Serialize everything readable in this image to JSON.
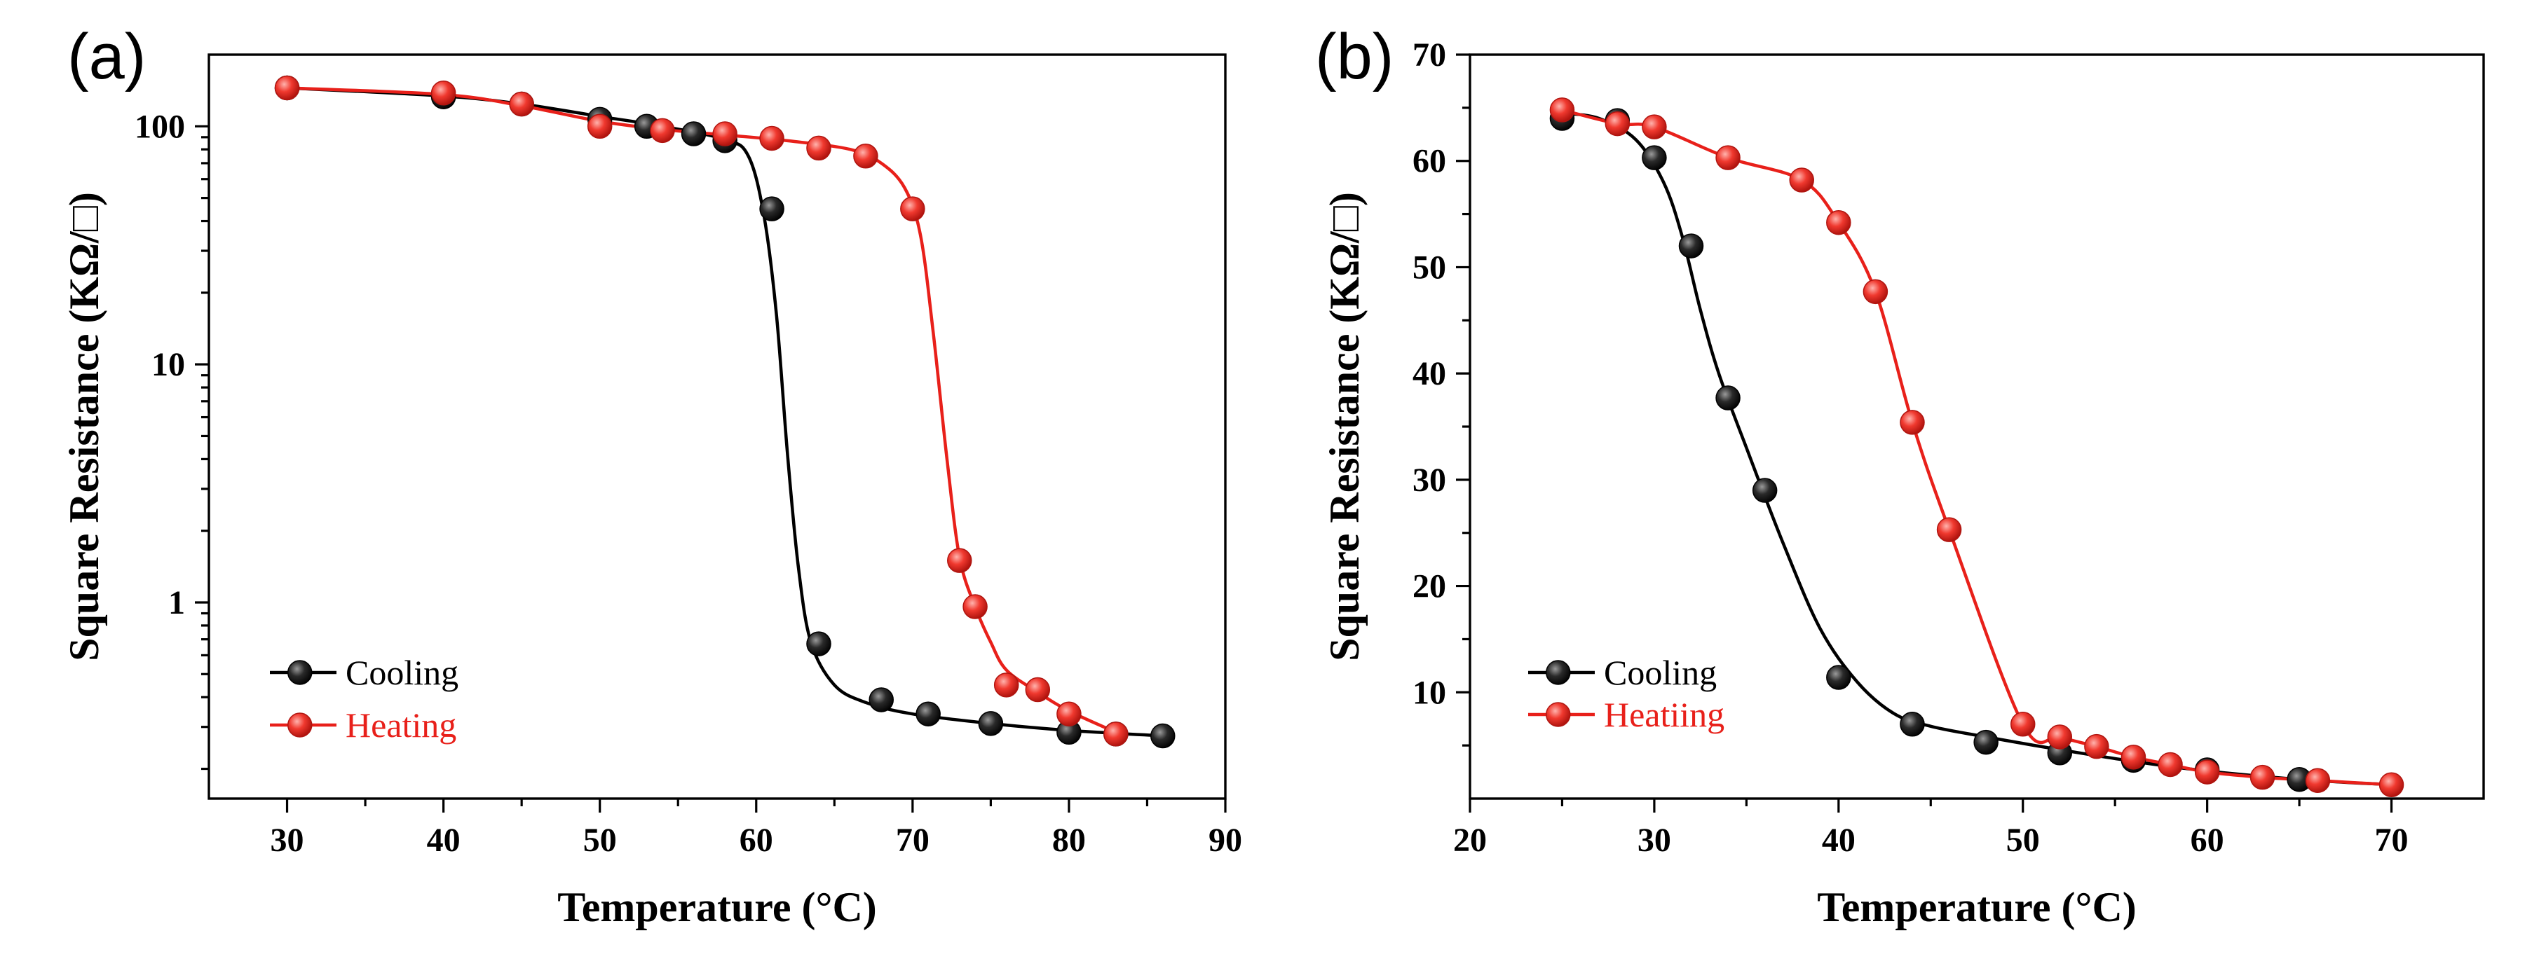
{
  "colors": {
    "cooling": "#000000",
    "heating": "#e8201a",
    "marker_cooling": "#1a1a1a",
    "marker_heating": "#e8201a"
  },
  "chart_data": [
    {
      "panel_label": "(a)",
      "type": "scatter",
      "yscale": "log",
      "xlabel": "Temperature (°C)",
      "ylabel": "Square Resistance (KΩ/□)",
      "xlim": [
        25,
        90
      ],
      "ylim": [
        0.15,
        200
      ],
      "xticks": [
        30,
        40,
        50,
        60,
        70,
        80,
        90
      ],
      "xtick_labels": [
        "30",
        "40",
        "50",
        "60",
        "70",
        "80",
        "90"
      ],
      "yticks": [
        1,
        10,
        100
      ],
      "ytick_labels": [
        "1",
        "10",
        "100"
      ],
      "legend_position": "bottom-left",
      "series": [
        {
          "name": "Cooling",
          "color": "#000000",
          "points": [
            [
              30,
              145
            ],
            [
              40,
              133
            ],
            [
              45,
              124
            ],
            [
              50,
              107
            ],
            [
              53,
              100
            ],
            [
              56,
              93
            ],
            [
              58,
              87
            ],
            [
              61,
              45
            ],
            [
              64,
              0.67
            ],
            [
              68,
              0.39
            ],
            [
              71,
              0.34
            ],
            [
              75,
              0.31
            ],
            [
              80,
              0.285
            ],
            [
              83,
              0.28
            ],
            [
              86,
              0.275
            ]
          ],
          "curve": [
            [
              30,
              145
            ],
            [
              40,
              134
            ],
            [
              45,
              124
            ],
            [
              50,
              110
            ],
            [
              54,
              100
            ],
            [
              58,
              88
            ],
            [
              59.5,
              75
            ],
            [
              60.5,
              42
            ],
            [
              61.3,
              16
            ],
            [
              62,
              4.2
            ],
            [
              62.7,
              1.4
            ],
            [
              63.5,
              0.68
            ],
            [
              65,
              0.45
            ],
            [
              67,
              0.38
            ],
            [
              70,
              0.34
            ],
            [
              75,
              0.31
            ],
            [
              80,
              0.29
            ],
            [
              86,
              0.275
            ]
          ]
        },
        {
          "name": "Heating",
          "color": "#e8201a",
          "points": [
            [
              30,
              145
            ],
            [
              40,
              138
            ],
            [
              45,
              124
            ],
            [
              50,
              100
            ],
            [
              54,
              96
            ],
            [
              58,
              93
            ],
            [
              61,
              89
            ],
            [
              64,
              81
            ],
            [
              67,
              75
            ],
            [
              70,
              45
            ],
            [
              73,
              1.5
            ],
            [
              74,
              0.96
            ],
            [
              76,
              0.45
            ],
            [
              78,
              0.43
            ],
            [
              80,
              0.34
            ],
            [
              83,
              0.28
            ]
          ],
          "curve": [
            [
              30,
              145
            ],
            [
              40,
              136
            ],
            [
              45,
              122
            ],
            [
              50,
              105
            ],
            [
              54,
              97
            ],
            [
              58,
              92
            ],
            [
              62,
              87
            ],
            [
              66,
              80
            ],
            [
              68,
              70
            ],
            [
              69.5,
              55
            ],
            [
              70.5,
              35
            ],
            [
              71.3,
              14
            ],
            [
              72.2,
              4
            ],
            [
              73,
              1.55
            ],
            [
              74,
              0.96
            ],
            [
              75,
              0.68
            ],
            [
              76,
              0.52
            ],
            [
              78,
              0.42
            ],
            [
              80,
              0.35
            ],
            [
              83,
              0.285
            ]
          ]
        }
      ]
    },
    {
      "panel_label": "(b)",
      "type": "scatter",
      "yscale": "linear",
      "xlabel": "Temperature (°C)",
      "ylabel": "Square Resistance (KΩ/□)",
      "xlim": [
        20,
        75
      ],
      "ylim": [
        0,
        70
      ],
      "xticks": [
        20,
        30,
        40,
        50,
        60,
        70
      ],
      "xtick_labels": [
        "20",
        "30",
        "40",
        "50",
        "60",
        "70"
      ],
      "yticks": [
        10,
        20,
        30,
        40,
        50,
        60,
        70
      ],
      "ytick_labels": [
        "10",
        "20",
        "30",
        "40",
        "50",
        "60",
        "70"
      ],
      "legend_position": "bottom-left",
      "series": [
        {
          "name": "Cooling",
          "color": "#000000",
          "points": [
            [
              25,
              64
            ],
            [
              28,
              63.8
            ],
            [
              30,
              60.3
            ],
            [
              32,
              52
            ],
            [
              34,
              37.7
            ],
            [
              36,
              29
            ],
            [
              40,
              11.4
            ],
            [
              44,
              7
            ],
            [
              48,
              5.3
            ],
            [
              52,
              4.3
            ],
            [
              56,
              3.6
            ],
            [
              60,
              2.7
            ],
            [
              65,
              1.8
            ]
          ],
          "curve": [
            [
              25,
              64.5
            ],
            [
              27,
              64
            ],
            [
              29,
              62
            ],
            [
              30.5,
              58
            ],
            [
              31.5,
              53
            ],
            [
              32.5,
              46
            ],
            [
              33.5,
              40
            ],
            [
              35,
              33
            ],
            [
              37,
              24
            ],
            [
              39,
              16
            ],
            [
              41,
              11
            ],
            [
              43,
              8
            ],
            [
              45,
              6.8
            ],
            [
              48,
              5.8
            ],
            [
              52,
              4.6
            ],
            [
              56,
              3.5
            ],
            [
              60,
              2.6
            ],
            [
              65,
              1.8
            ],
            [
              70,
              1.3
            ]
          ]
        },
        {
          "name": "Heatiing",
          "color": "#e8201a",
          "points": [
            [
              25,
              64.8
            ],
            [
              28,
              63.5
            ],
            [
              30,
              63.2
            ],
            [
              34,
              60.3
            ],
            [
              38,
              58.2
            ],
            [
              40,
              54.2
            ],
            [
              42,
              47.7
            ],
            [
              44,
              35.4
            ],
            [
              46,
              25.3
            ],
            [
              50,
              7
            ],
            [
              52,
              5.8
            ],
            [
              54,
              4.9
            ],
            [
              56,
              3.9
            ],
            [
              58,
              3.2
            ],
            [
              60,
              2.5
            ],
            [
              63,
              2
            ],
            [
              66,
              1.7
            ],
            [
              70,
              1.3
            ]
          ]
        }
      ]
    }
  ]
}
